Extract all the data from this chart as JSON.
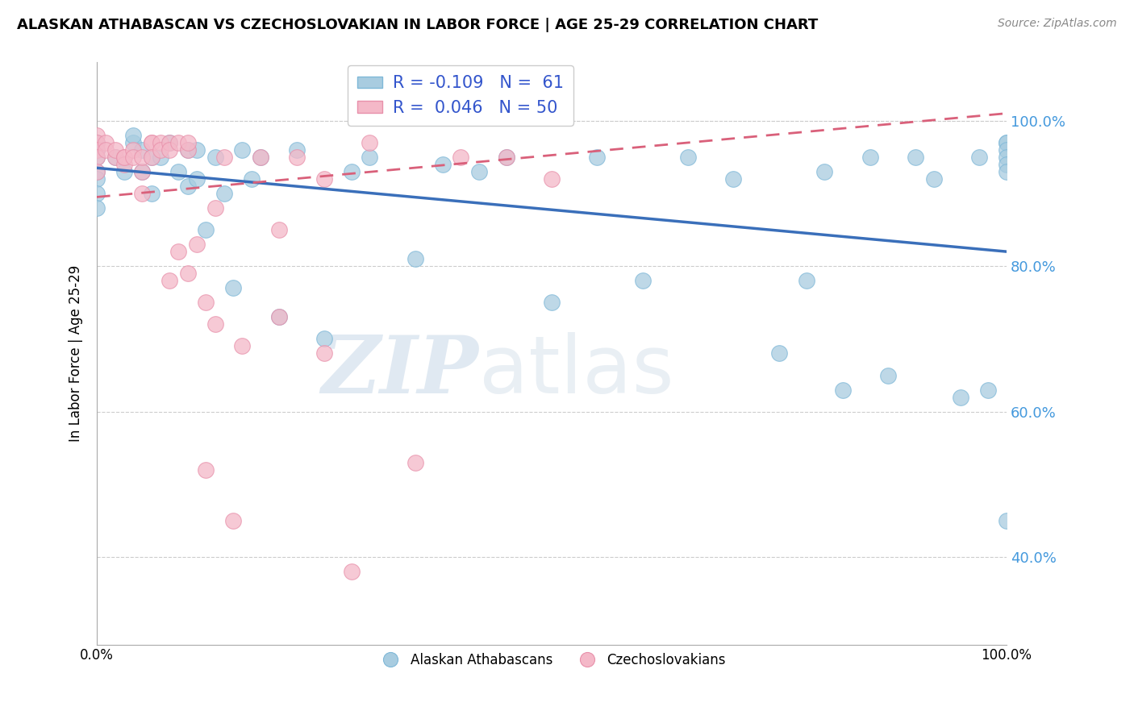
{
  "title": "ALASKAN ATHABASCAN VS CZECHOSLOVAKIAN IN LABOR FORCE | AGE 25-29 CORRELATION CHART",
  "source": "Source: ZipAtlas.com",
  "ylabel": "In Labor Force | Age 25-29",
  "xlim": [
    0.0,
    1.0
  ],
  "ylim": [
    0.28,
    1.08
  ],
  "yticks": [
    0.4,
    0.6,
    0.8,
    1.0
  ],
  "ytick_labels": [
    "40.0%",
    "60.0%",
    "80.0%",
    "100.0%"
  ],
  "xtick_labels": [
    "0.0%",
    "100.0%"
  ],
  "legend_blue_r": "-0.109",
  "legend_blue_n": "61",
  "legend_pink_r": "0.046",
  "legend_pink_n": "50",
  "blue_color": "#a8cce0",
  "pink_color": "#f4b8c8",
  "blue_line_color": "#3a6fba",
  "pink_line_color": "#d9607a",
  "watermark_zip": "ZIP",
  "watermark_atlas": "atlas",
  "blue_scatter_x": [
    0.0,
    0.0,
    0.0,
    0.0,
    0.0,
    0.0,
    0.0,
    0.02,
    0.03,
    0.04,
    0.04,
    0.05,
    0.05,
    0.06,
    0.06,
    0.07,
    0.08,
    0.09,
    0.1,
    0.1,
    0.11,
    0.11,
    0.12,
    0.13,
    0.14,
    0.15,
    0.16,
    0.17,
    0.18,
    0.2,
    0.22,
    0.25,
    0.28,
    0.3,
    0.35,
    0.38,
    0.42,
    0.45,
    0.5,
    0.55,
    0.6,
    0.65,
    0.7,
    0.75,
    0.78,
    0.8,
    0.82,
    0.85,
    0.87,
    0.9,
    0.92,
    0.95,
    0.97,
    0.98,
    1.0,
    1.0,
    1.0,
    1.0,
    1.0,
    1.0,
    1.0
  ],
  "blue_scatter_y": [
    0.97,
    0.96,
    0.95,
    0.93,
    0.92,
    0.9,
    0.88,
    0.95,
    0.93,
    0.97,
    0.98,
    0.93,
    0.96,
    0.9,
    0.95,
    0.95,
    0.97,
    0.93,
    0.91,
    0.96,
    0.92,
    0.96,
    0.85,
    0.95,
    0.9,
    0.77,
    0.96,
    0.92,
    0.95,
    0.73,
    0.96,
    0.7,
    0.93,
    0.95,
    0.81,
    0.94,
    0.93,
    0.95,
    0.75,
    0.95,
    0.78,
    0.95,
    0.92,
    0.68,
    0.78,
    0.93,
    0.63,
    0.95,
    0.65,
    0.95,
    0.92,
    0.62,
    0.95,
    0.63,
    0.97,
    0.97,
    0.96,
    0.95,
    0.94,
    0.93,
    0.45
  ],
  "pink_scatter_x": [
    0.0,
    0.0,
    0.0,
    0.0,
    0.0,
    0.01,
    0.01,
    0.02,
    0.02,
    0.03,
    0.03,
    0.03,
    0.04,
    0.04,
    0.05,
    0.05,
    0.06,
    0.06,
    0.06,
    0.07,
    0.07,
    0.08,
    0.08,
    0.09,
    0.09,
    0.1,
    0.1,
    0.11,
    0.12,
    0.13,
    0.14,
    0.15,
    0.16,
    0.18,
    0.2,
    0.22,
    0.25,
    0.28,
    0.3,
    0.13,
    0.45,
    0.5,
    0.1,
    0.2,
    0.25,
    0.35,
    0.4,
    0.05,
    0.08,
    0.12
  ],
  "pink_scatter_y": [
    0.98,
    0.97,
    0.96,
    0.95,
    0.93,
    0.97,
    0.96,
    0.95,
    0.96,
    0.95,
    0.94,
    0.95,
    0.96,
    0.95,
    0.93,
    0.95,
    0.97,
    0.97,
    0.95,
    0.97,
    0.96,
    0.97,
    0.96,
    0.82,
    0.97,
    0.96,
    0.97,
    0.83,
    0.75,
    0.72,
    0.95,
    0.45,
    0.69,
    0.95,
    0.73,
    0.95,
    0.92,
    0.38,
    0.97,
    0.88,
    0.95,
    0.92,
    0.79,
    0.85,
    0.68,
    0.53,
    0.95,
    0.9,
    0.78,
    0.52
  ]
}
